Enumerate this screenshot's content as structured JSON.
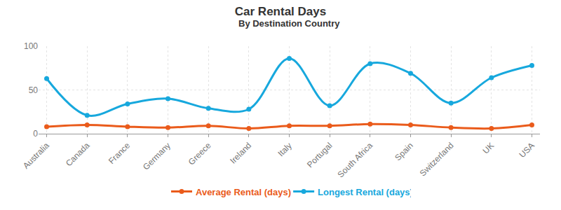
{
  "chart_data": {
    "type": "line",
    "title": "Car Rental Days",
    "subtitle": "By Destination Country",
    "categories": [
      "Australia",
      "Canada",
      "France",
      "Germany",
      "Greece",
      "Ireland",
      "Italy",
      "Portugal",
      "South Africa",
      "Spain",
      "Switzerland",
      "UK",
      "USA"
    ],
    "series": [
      {
        "name": "Average Rental (days)",
        "color": "#ea5b1b",
        "marker": "circle",
        "line_style": "spline",
        "values": [
          8,
          10,
          8,
          7,
          9,
          6,
          9,
          9,
          11,
          10,
          7,
          6,
          10
        ]
      },
      {
        "name": "Longest Rental (days)",
        "color": "#17a8dd",
        "marker": "circle",
        "line_style": "spline",
        "values": [
          63,
          21,
          34,
          40,
          29,
          28,
          86,
          32,
          80,
          69,
          35,
          64,
          78
        ]
      }
    ],
    "ylim": [
      0,
      100
    ],
    "yticks": [
      0,
      50,
      100
    ],
    "grid": true,
    "legend": "bottom"
  }
}
